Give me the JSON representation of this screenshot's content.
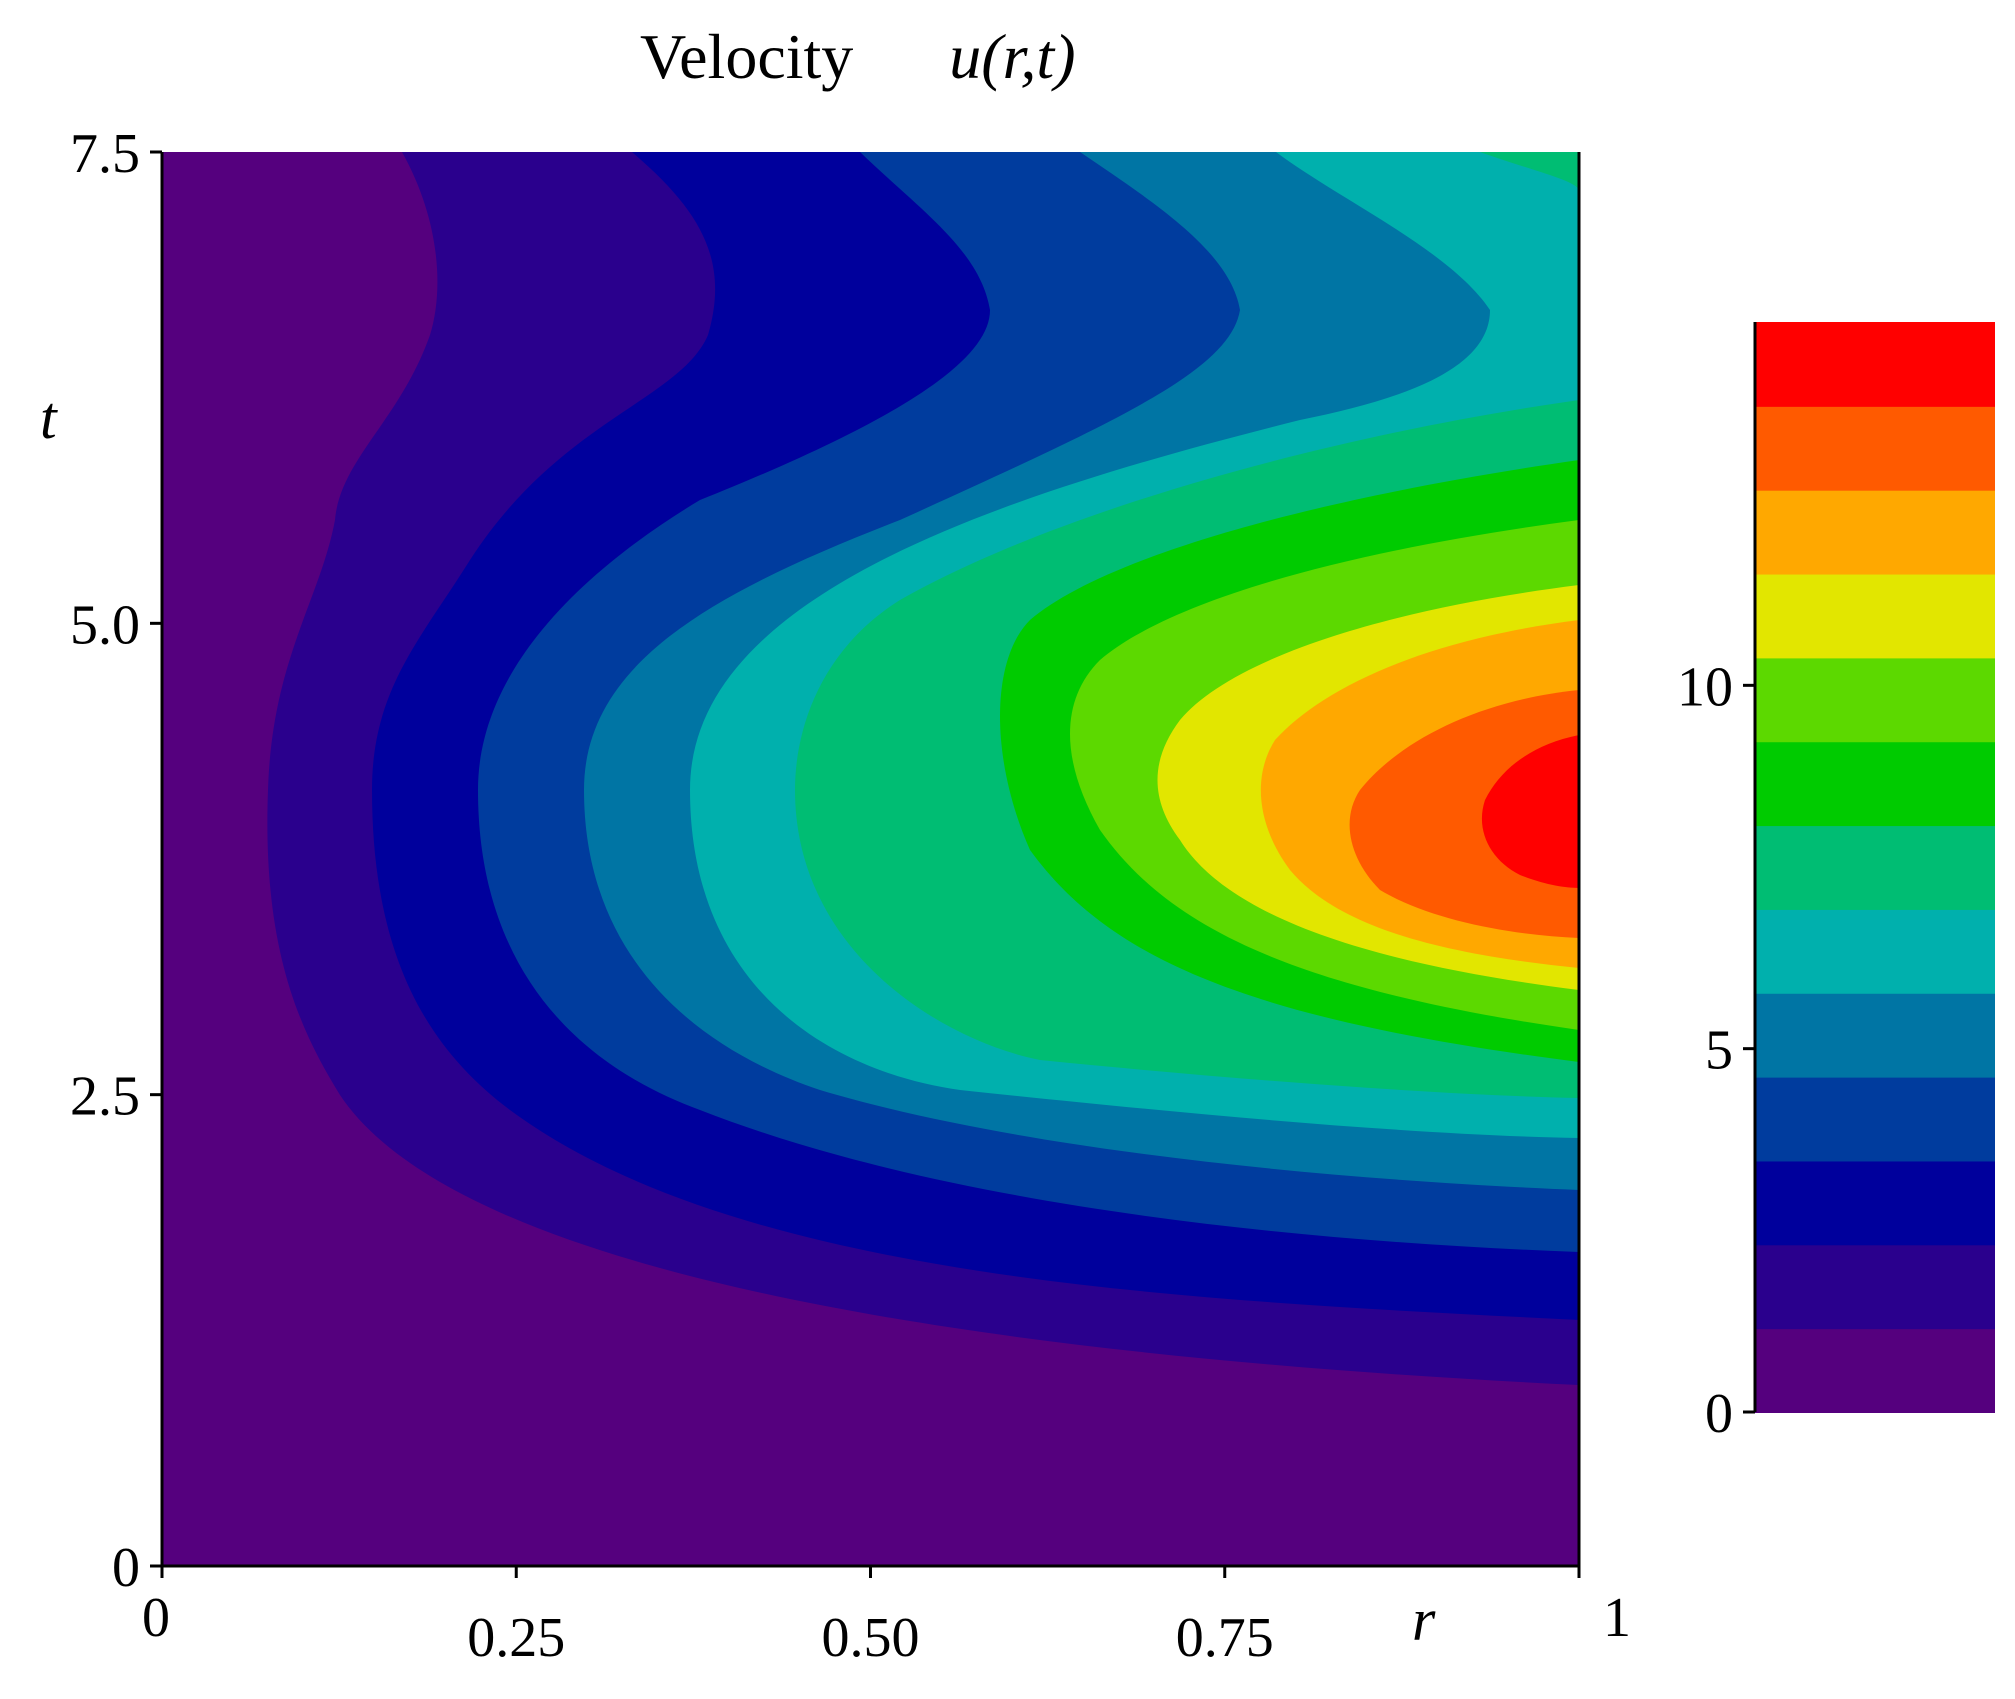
{
  "chart_data": {
    "type": "contour",
    "title": "Velocity",
    "title_function": "u(r,t)",
    "xlabel": "r",
    "ylabel": "t",
    "xlim": [
      0,
      1
    ],
    "ylim": [
      0,
      7.5
    ],
    "x_ticks": [
      {
        "value": 0,
        "label": "0"
      },
      {
        "value": 0.25,
        "label": "0.25"
      },
      {
        "value": 0.5,
        "label": "0.50"
      },
      {
        "value": 0.75,
        "label": "0.75"
      },
      {
        "value": 1,
        "label": "1"
      }
    ],
    "y_ticks": [
      {
        "value": 0,
        "label": "0"
      },
      {
        "value": 2.5,
        "label": "2.5"
      },
      {
        "value": 5.0,
        "label": "5.0"
      },
      {
        "value": 7.5,
        "label": "7.5"
      }
    ],
    "colorbar": {
      "range": [
        0,
        15
      ],
      "ticks": [
        {
          "value": 0,
          "label": "0"
        },
        {
          "value": 5,
          "label": "5"
        },
        {
          "value": 10,
          "label": "10"
        }
      ],
      "colors": [
        "#55007e",
        "#2a008d",
        "#00009c",
        "#003c9e",
        "#0075a4",
        "#00b0ad",
        "#00bd73",
        "#00cb00",
        "#5cd900",
        "#e2e600",
        "#ffa800",
        "#ff5a00",
        "#ff0000"
      ]
    },
    "peak": {
      "r": 1.0,
      "t": 4.1,
      "value": 15
    }
  }
}
